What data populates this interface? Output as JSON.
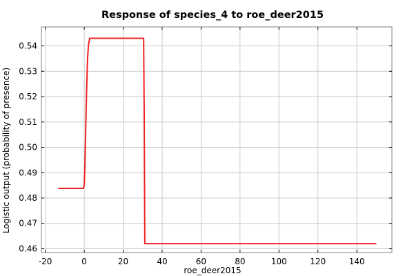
{
  "chart_data": {
    "type": "line",
    "title": "Response of species_4 to roe_deer2015",
    "xlabel": "roe_deer2015",
    "ylabel": "Logistic output (probability of presence)",
    "xlim": [
      -22,
      158
    ],
    "ylim": [
      0.4585,
      0.5475
    ],
    "x_ticks": [
      -20,
      0,
      20,
      40,
      60,
      80,
      100,
      120,
      140
    ],
    "x_tick_labels": [
      "-20",
      "0",
      "20",
      "40",
      "60",
      "80",
      "100",
      "120",
      "140"
    ],
    "y_ticks": [
      0.46,
      0.47,
      0.48,
      0.49,
      0.5,
      0.51,
      0.52,
      0.53,
      0.54
    ],
    "y_tick_labels": [
      "0.46",
      "0.47",
      "0.48",
      "0.49",
      "0.50",
      "0.51",
      "0.52",
      "0.53",
      "0.54"
    ],
    "grid": true,
    "series": [
      {
        "color": "#ee2222",
        "x": [
          -13.4,
          -0.5,
          0.0,
          0.4,
          0.9,
          1.3,
          1.7,
          2.2,
          2.8,
          30.5,
          30.8,
          31.1,
          150.0
        ],
        "y": [
          0.4838,
          0.4838,
          0.4848,
          0.495,
          0.512,
          0.525,
          0.535,
          0.5405,
          0.543,
          0.543,
          0.512,
          0.462,
          0.462
        ]
      }
    ]
  }
}
